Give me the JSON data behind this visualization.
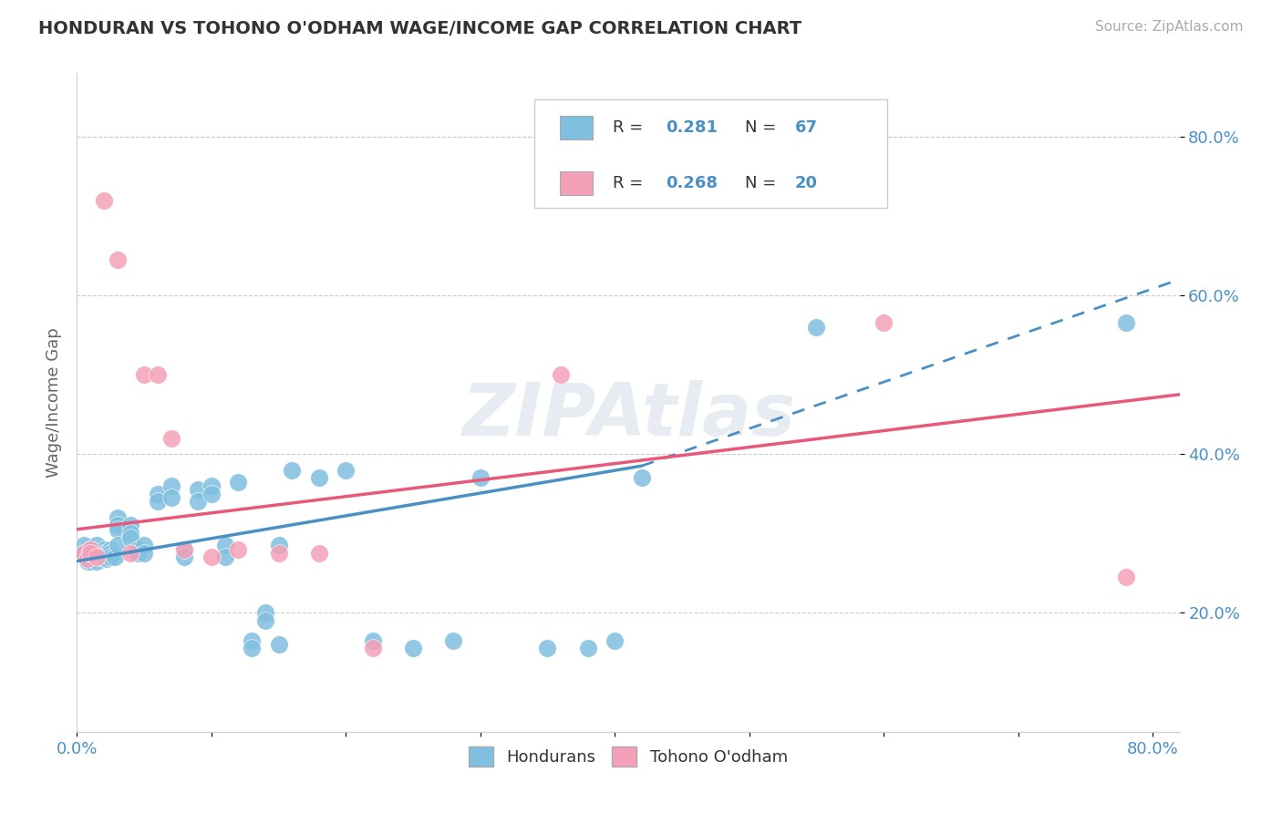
{
  "title": "HONDURAN VS TOHONO O'ODHAM WAGE/INCOME GAP CORRELATION CHART",
  "source": "Source: ZipAtlas.com",
  "ylabel": "Wage/Income Gap",
  "xlim": [
    0.0,
    0.82
  ],
  "ylim": [
    0.05,
    0.88
  ],
  "xtick_positions": [
    0.0,
    0.1,
    0.2,
    0.3,
    0.4,
    0.5,
    0.6,
    0.7,
    0.8
  ],
  "xticklabels": [
    "0.0%",
    "",
    "",
    "",
    "",
    "",
    "",
    "",
    "80.0%"
  ],
  "ytick_positions": [
    0.2,
    0.4,
    0.6,
    0.8
  ],
  "ytick_labels": [
    "20.0%",
    "40.0%",
    "60.0%",
    "80.0%"
  ],
  "background_color": "#ffffff",
  "watermark": "ZIPAtlas",
  "blue_color": "#7fbfdf",
  "pink_color": "#f4a0b8",
  "blue_line_color": "#4a90c4",
  "pink_line_color": "#e8587a",
  "blue_line_solid": [
    [
      0.0,
      0.265
    ],
    [
      0.42,
      0.385
    ]
  ],
  "blue_line_dashed": [
    [
      0.42,
      0.385
    ],
    [
      0.82,
      0.62
    ]
  ],
  "pink_line": [
    [
      0.0,
      0.305
    ],
    [
      0.82,
      0.475
    ]
  ],
  "honduran_points": [
    [
      0.005,
      0.285
    ],
    [
      0.005,
      0.275
    ],
    [
      0.008,
      0.27
    ],
    [
      0.008,
      0.265
    ],
    [
      0.01,
      0.275
    ],
    [
      0.01,
      0.28
    ],
    [
      0.01,
      0.27
    ],
    [
      0.01,
      0.265
    ],
    [
      0.012,
      0.272
    ],
    [
      0.012,
      0.268
    ],
    [
      0.015,
      0.275
    ],
    [
      0.015,
      0.27
    ],
    [
      0.015,
      0.265
    ],
    [
      0.015,
      0.285
    ],
    [
      0.018,
      0.275
    ],
    [
      0.018,
      0.27
    ],
    [
      0.02,
      0.28
    ],
    [
      0.02,
      0.275
    ],
    [
      0.02,
      0.27
    ],
    [
      0.022,
      0.275
    ],
    [
      0.022,
      0.268
    ],
    [
      0.025,
      0.28
    ],
    [
      0.025,
      0.275
    ],
    [
      0.025,
      0.27
    ],
    [
      0.028,
      0.27
    ],
    [
      0.03,
      0.32
    ],
    [
      0.03,
      0.31
    ],
    [
      0.03,
      0.305
    ],
    [
      0.03,
      0.285
    ],
    [
      0.04,
      0.31
    ],
    [
      0.04,
      0.3
    ],
    [
      0.04,
      0.295
    ],
    [
      0.045,
      0.28
    ],
    [
      0.045,
      0.275
    ],
    [
      0.05,
      0.285
    ],
    [
      0.05,
      0.275
    ],
    [
      0.06,
      0.35
    ],
    [
      0.06,
      0.34
    ],
    [
      0.07,
      0.36
    ],
    [
      0.07,
      0.345
    ],
    [
      0.08,
      0.28
    ],
    [
      0.08,
      0.27
    ],
    [
      0.09,
      0.355
    ],
    [
      0.09,
      0.34
    ],
    [
      0.1,
      0.36
    ],
    [
      0.1,
      0.35
    ],
    [
      0.11,
      0.285
    ],
    [
      0.11,
      0.27
    ],
    [
      0.12,
      0.365
    ],
    [
      0.13,
      0.165
    ],
    [
      0.13,
      0.155
    ],
    [
      0.14,
      0.2
    ],
    [
      0.14,
      0.19
    ],
    [
      0.15,
      0.285
    ],
    [
      0.15,
      0.16
    ],
    [
      0.16,
      0.38
    ],
    [
      0.18,
      0.37
    ],
    [
      0.2,
      0.38
    ],
    [
      0.22,
      0.165
    ],
    [
      0.25,
      0.155
    ],
    [
      0.28,
      0.165
    ],
    [
      0.3,
      0.37
    ],
    [
      0.35,
      0.155
    ],
    [
      0.38,
      0.155
    ],
    [
      0.4,
      0.165
    ],
    [
      0.42,
      0.37
    ],
    [
      0.55,
      0.56
    ],
    [
      0.78,
      0.565
    ]
  ],
  "tohono_points": [
    [
      0.005,
      0.275
    ],
    [
      0.008,
      0.268
    ],
    [
      0.01,
      0.28
    ],
    [
      0.01,
      0.275
    ],
    [
      0.015,
      0.27
    ],
    [
      0.02,
      0.72
    ],
    [
      0.03,
      0.645
    ],
    [
      0.04,
      0.275
    ],
    [
      0.05,
      0.5
    ],
    [
      0.06,
      0.5
    ],
    [
      0.07,
      0.42
    ],
    [
      0.08,
      0.28
    ],
    [
      0.1,
      0.27
    ],
    [
      0.12,
      0.28
    ],
    [
      0.15,
      0.275
    ],
    [
      0.18,
      0.275
    ],
    [
      0.22,
      0.155
    ],
    [
      0.36,
      0.5
    ],
    [
      0.6,
      0.565
    ],
    [
      0.78,
      0.245
    ]
  ]
}
